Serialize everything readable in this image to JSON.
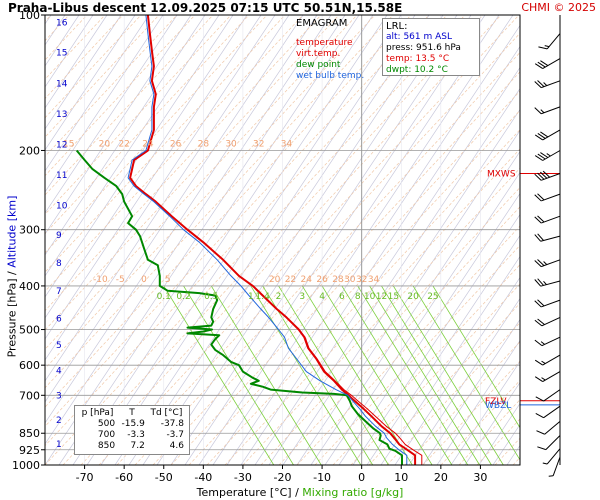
{
  "header": {
    "title": "Praha-Libus   descent   12.09.2025 07:15 UTC  50.51N,15.58E",
    "credit": "CHMI © 2025"
  },
  "legend": {
    "title": "EMAGRAM",
    "items": [
      {
        "label": "temperature",
        "color": "#e00000"
      },
      {
        "label": "virt.temp.",
        "color": "#e00000"
      },
      {
        "label": "dew point",
        "color": "#008800"
      },
      {
        "label": "wet bulb temp.",
        "color": "#2266dd"
      }
    ]
  },
  "lrl": {
    "title": "LRL:",
    "alt": "alt: 561 m ASL",
    "press": "press: 951.6 hPa",
    "temp": "temp: 13.5 °C",
    "dwpt": "dwpt: 10.2 °C",
    "colors": {
      "alt": "#0000cc",
      "press": "#000000",
      "temp": "#e00000",
      "dwpt": "#008800"
    }
  },
  "levels_table": {
    "headers": [
      "p [hPa]",
      "T",
      "Td [°C]"
    ],
    "rows": [
      [
        "500",
        "-15.9",
        "-37.8"
      ],
      [
        "700",
        "-3.3",
        "-3.7"
      ],
      [
        "850",
        "7.2",
        "4.6"
      ]
    ]
  },
  "axes": {
    "xlabel_prefix": "Temperature [°C]  /  ",
    "xlabel_mixing": "Mixing ratio [g/kg]",
    "ylabel_pressure": "Pressure [hPa]  /  ",
    "ylabel_altitude": "Altitude [km]",
    "colors": {
      "pressure": "#000000",
      "altitude": "#0000cc",
      "mixing": "#33aa00"
    }
  },
  "chart_data": {
    "type": "line",
    "title": "Praha-Libus descent 12.09.2025 07:15 UTC 50.51N,15.58E",
    "subtitle": "EMAGRAM",
    "xlabel": "Temperature [°C]  /  Mixing ratio [g/kg]",
    "ylabel": "Pressure [hPa]  /  Altitude [km]",
    "xlim": [
      -80,
      40
    ],
    "ylim": [
      1000,
      100
    ],
    "y_scale": "log",
    "grid": true,
    "x_ticks": [
      -70,
      -60,
      -50,
      -40,
      -30,
      -20,
      -10,
      0,
      10,
      20,
      30
    ],
    "pressure_ticks": [
      {
        "p": 100,
        "label": "100"
      },
      {
        "p": 200,
        "label": "200"
      },
      {
        "p": 300,
        "label": "300"
      },
      {
        "p": 400,
        "label": "400"
      },
      {
        "p": 500,
        "label": "500"
      },
      {
        "p": 600,
        "label": "600"
      },
      {
        "p": 700,
        "label": "700"
      },
      {
        "p": 850,
        "label": "850"
      },
      {
        "p": 925,
        "label": "925"
      },
      {
        "p": 1000,
        "label": "1000"
      }
    ],
    "altitude_ticks": [
      {
        "p": 897,
        "label": "1"
      },
      {
        "p": 795,
        "label": "2"
      },
      {
        "p": 701,
        "label": "3"
      },
      {
        "p": 617,
        "label": "4"
      },
      {
        "p": 541,
        "label": "5"
      },
      {
        "p": 472,
        "label": "6"
      },
      {
        "p": 411,
        "label": "7"
      },
      {
        "p": 356,
        "label": "8"
      },
      {
        "p": 308,
        "label": "9"
      },
      {
        "p": 265,
        "label": "10"
      },
      {
        "p": 227,
        "label": "11"
      },
      {
        "p": 194,
        "label": "12"
      },
      {
        "p": 166,
        "label": "13"
      },
      {
        "p": 142,
        "label": "14"
      },
      {
        "p": 121,
        "label": "15"
      },
      {
        "p": 104,
        "label": "16"
      }
    ],
    "mixing_ratio_labels": [
      "0.1",
      "0.2",
      "0.5",
      "1",
      "1.4",
      "2",
      "3",
      "4",
      "6",
      "8",
      "10",
      "12",
      "15",
      "20",
      "25"
    ],
    "mixing_ratio_label_x": [
      -50,
      -45,
      -38,
      -28,
      -25,
      -21,
      -15,
      -10,
      -5,
      -1,
      2,
      5,
      8,
      13,
      18
    ],
    "adiabat_labels_400": [
      "-10",
      "-5",
      "0",
      "5",
      "20",
      "22",
      "24",
      "26",
      "28",
      "30",
      "32",
      "34"
    ],
    "adiabat_labels_400_x": [
      -66,
      -61,
      -55,
      -49,
      -22,
      -18,
      -14,
      -10,
      -6,
      -3,
      0,
      3
    ],
    "adiabat_labels_200": [
      "15",
      "20",
      "22",
      "24",
      "26",
      "28",
      "30",
      "32",
      "34"
    ],
    "adiabat_labels_200_x": [
      -74,
      -65,
      -60,
      -54,
      -47,
      -40,
      -33,
      -26,
      -19
    ],
    "series": [
      {
        "name": "temperature",
        "color": "#e00000",
        "width": 2,
        "points": [
          [
            1000,
            13.5
          ],
          [
            951.6,
            13.5
          ],
          [
            925,
            11.5
          ],
          [
            900,
            9.5
          ],
          [
            870,
            8.2
          ],
          [
            850,
            7.2
          ],
          [
            820,
            5.0
          ],
          [
            780,
            2.5
          ],
          [
            750,
            0.5
          ],
          [
            720,
            -1.8
          ],
          [
            700,
            -3.3
          ],
          [
            680,
            -5.0
          ],
          [
            650,
            -7.0
          ],
          [
            620,
            -9.5
          ],
          [
            580,
            -11.5
          ],
          [
            550,
            -13.5
          ],
          [
            520,
            -14.5
          ],
          [
            500,
            -15.9
          ],
          [
            470,
            -19
          ],
          [
            450,
            -21.5
          ],
          [
            420,
            -25
          ],
          [
            400,
            -27.5
          ],
          [
            380,
            -31
          ],
          [
            350,
            -35
          ],
          [
            320,
            -40
          ],
          [
            300,
            -44
          ],
          [
            280,
            -48
          ],
          [
            260,
            -52
          ],
          [
            250,
            -54.5
          ],
          [
            240,
            -57
          ],
          [
            230,
            -58.5
          ],
          [
            220,
            -58
          ],
          [
            210,
            -57.5
          ],
          [
            200,
            -54
          ],
          [
            180,
            -52.5
          ],
          [
            160,
            -52.5
          ],
          [
            150,
            -52
          ],
          [
            140,
            -53
          ],
          [
            130,
            -52.5
          ],
          [
            120,
            -53
          ],
          [
            110,
            -53.5
          ],
          [
            100,
            -54
          ]
        ]
      },
      {
        "name": "virt.temp.",
        "color": "#e00000",
        "width": 1,
        "points": [
          [
            1000,
            15.2
          ],
          [
            951.6,
            15.2
          ],
          [
            925,
            13.0
          ],
          [
            900,
            11.0
          ],
          [
            870,
            9.6
          ],
          [
            850,
            8.5
          ],
          [
            820,
            6.2
          ],
          [
            780,
            3.5
          ],
          [
            750,
            1.4
          ],
          [
            720,
            -1.0
          ],
          [
            700,
            -2.6
          ],
          [
            680,
            -4.5
          ],
          [
            650,
            -6.7
          ],
          [
            620,
            -9.2
          ],
          [
            580,
            -11.3
          ],
          [
            550,
            -13.3
          ],
          [
            520,
            -14.3
          ],
          [
            500,
            -15.8
          ],
          [
            470,
            -19
          ],
          [
            450,
            -21.5
          ],
          [
            420,
            -25
          ],
          [
            400,
            -27.5
          ],
          [
            380,
            -31
          ],
          [
            350,
            -35
          ],
          [
            320,
            -40
          ],
          [
            300,
            -44
          ],
          [
            280,
            -48
          ],
          [
            260,
            -52
          ],
          [
            250,
            -54.5
          ],
          [
            240,
            -57
          ],
          [
            230,
            -58.5
          ],
          [
            220,
            -58
          ],
          [
            210,
            -57.5
          ],
          [
            200,
            -54
          ],
          [
            180,
            -52.5
          ],
          [
            160,
            -52.5
          ],
          [
            150,
            -52
          ],
          [
            140,
            -53
          ],
          [
            130,
            -52.5
          ],
          [
            120,
            -53
          ],
          [
            110,
            -53.5
          ],
          [
            100,
            -54
          ]
        ]
      },
      {
        "name": "dew point",
        "color": "#008800",
        "width": 2,
        "points": [
          [
            1000,
            10.2
          ],
          [
            951.6,
            10.2
          ],
          [
            930,
            8.5
          ],
          [
            920,
            7.0
          ],
          [
            900,
            6.5
          ],
          [
            880,
            4.5
          ],
          [
            860,
            4.8
          ],
          [
            850,
            4.6
          ],
          [
            830,
            3.0
          ],
          [
            800,
            1.0
          ],
          [
            770,
            -1.0
          ],
          [
            740,
            -2.5
          ],
          [
            720,
            -3.0
          ],
          [
            700,
            -3.7
          ],
          [
            695,
            -7
          ],
          [
            690,
            -15
          ],
          [
            680,
            -23
          ],
          [
            670,
            -25
          ],
          [
            660,
            -28
          ],
          [
            650,
            -26
          ],
          [
            640,
            -27.5
          ],
          [
            620,
            -30
          ],
          [
            600,
            -31
          ],
          [
            590,
            -33
          ],
          [
            580,
            -34
          ],
          [
            570,
            -35
          ],
          [
            555,
            -37
          ],
          [
            540,
            -38
          ],
          [
            525,
            -37
          ],
          [
            515,
            -36
          ],
          [
            510,
            -44
          ],
          [
            505,
            -40
          ],
          [
            500,
            -37.8
          ],
          [
            495,
            -44
          ],
          [
            490,
            -38
          ],
          [
            480,
            -37.5
          ],
          [
            470,
            -38
          ],
          [
            450,
            -37.5
          ],
          [
            430,
            -36.5
          ],
          [
            420,
            -37
          ],
          [
            415,
            -41
          ],
          [
            410,
            -49
          ],
          [
            400,
            -51
          ],
          [
            380,
            -51
          ],
          [
            360,
            -51.5
          ],
          [
            350,
            -54
          ],
          [
            330,
            -55
          ],
          [
            310,
            -56
          ],
          [
            300,
            -57
          ],
          [
            290,
            -59
          ],
          [
            280,
            -58
          ],
          [
            260,
            -60
          ],
          [
            250,
            -60.5
          ],
          [
            240,
            -62
          ],
          [
            230,
            -65
          ],
          [
            220,
            -68
          ],
          [
            210,
            -70
          ],
          [
            200,
            -72
          ]
        ]
      },
      {
        "name": "wet bulb temp.",
        "color": "#2266dd",
        "width": 1,
        "points": [
          [
            1000,
            11.4
          ],
          [
            951.6,
            11.4
          ],
          [
            925,
            9.4
          ],
          [
            900,
            7.8
          ],
          [
            870,
            6.3
          ],
          [
            850,
            5.7
          ],
          [
            820,
            3.5
          ],
          [
            780,
            1.0
          ],
          [
            750,
            -0.5
          ],
          [
            720,
            -2.3
          ],
          [
            700,
            -3.5
          ],
          [
            680,
            -6.5
          ],
          [
            650,
            -10.5
          ],
          [
            620,
            -14
          ],
          [
            580,
            -16.5
          ],
          [
            550,
            -18.5
          ],
          [
            520,
            -19.5
          ],
          [
            500,
            -21
          ],
          [
            470,
            -23.5
          ],
          [
            450,
            -25.5
          ],
          [
            420,
            -28.5
          ],
          [
            400,
            -30.5
          ],
          [
            380,
            -33
          ],
          [
            350,
            -36.5
          ],
          [
            320,
            -41
          ],
          [
            300,
            -45
          ],
          [
            280,
            -48.5
          ],
          [
            260,
            -52.5
          ],
          [
            250,
            -55
          ],
          [
            240,
            -57.5
          ],
          [
            230,
            -59
          ],
          [
            220,
            -58.5
          ],
          [
            210,
            -58
          ],
          [
            200,
            -54.5
          ],
          [
            180,
            -53
          ],
          [
            160,
            -53
          ],
          [
            150,
            -52.5
          ],
          [
            140,
            -53.5
          ],
          [
            130,
            -53
          ],
          [
            120,
            -53.5
          ],
          [
            110,
            -54
          ],
          [
            100,
            -54.5
          ]
        ]
      }
    ],
    "markers": [
      {
        "label": "MXWS",
        "p": 225,
        "color": "#e00000"
      },
      {
        "label": "FZLV",
        "p": 720,
        "color": "#e00000"
      },
      {
        "label": "WBZL",
        "p": 735,
        "color": "#2266dd"
      }
    ],
    "wind_barbs": [
      {
        "p": 110,
        "dir": 220,
        "speed": 15
      },
      {
        "p": 125,
        "dir": 240,
        "speed": 30
      },
      {
        "p": 140,
        "dir": 250,
        "speed": 25
      },
      {
        "p": 160,
        "dir": 250,
        "speed": 15
      },
      {
        "p": 180,
        "dir": 240,
        "speed": 30
      },
      {
        "p": 200,
        "dir": 240,
        "speed": 35
      },
      {
        "p": 225,
        "dir": 250,
        "speed": 40
      },
      {
        "p": 250,
        "dir": 250,
        "speed": 20
      },
      {
        "p": 280,
        "dir": 250,
        "speed": 20
      },
      {
        "p": 310,
        "dir": 255,
        "speed": 20
      },
      {
        "p": 350,
        "dir": 250,
        "speed": 25
      },
      {
        "p": 390,
        "dir": 255,
        "speed": 25
      },
      {
        "p": 430,
        "dir": 250,
        "speed": 20
      },
      {
        "p": 470,
        "dir": 245,
        "speed": 20
      },
      {
        "p": 520,
        "dir": 245,
        "speed": 15
      },
      {
        "p": 570,
        "dir": 240,
        "speed": 15
      },
      {
        "p": 620,
        "dir": 240,
        "speed": 15
      },
      {
        "p": 680,
        "dir": 235,
        "speed": 10
      },
      {
        "p": 740,
        "dir": 235,
        "speed": 10
      },
      {
        "p": 800,
        "dir": 230,
        "speed": 10
      },
      {
        "p": 860,
        "dir": 225,
        "speed": 10
      },
      {
        "p": 920,
        "dir": 220,
        "speed": 5
      },
      {
        "p": 960,
        "dir": 200,
        "speed": 5
      }
    ]
  }
}
